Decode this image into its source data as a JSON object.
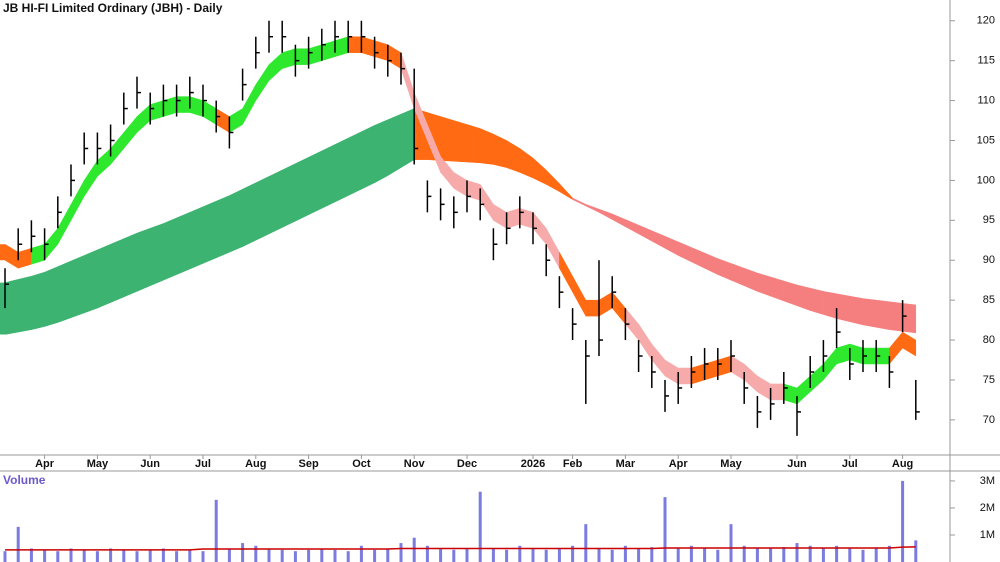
{
  "chart_data": [
    {
      "type": "ohlc",
      "title": "JB HI-FI Limited Ordinary (JBH) - Daily",
      "categories": [
        null,
        null,
        null,
        "Apr",
        null,
        null,
        null,
        "May",
        null,
        null,
        null,
        "Jun",
        null,
        null,
        null,
        "Jul",
        null,
        null,
        null,
        "Aug",
        null,
        null,
        null,
        "Sep",
        null,
        null,
        null,
        "Oct",
        null,
        null,
        null,
        "Nov",
        null,
        null,
        null,
        "Dec",
        null,
        null,
        null,
        null,
        "2026",
        null,
        null,
        "Feb",
        null,
        null,
        null,
        "Mar",
        null,
        null,
        null,
        "Apr",
        null,
        null,
        null,
        "May",
        null,
        null,
        null,
        null,
        "Jun",
        null,
        null,
        null,
        "Jul",
        null,
        null,
        null,
        "Aug",
        null
      ],
      "high": [
        89,
        94,
        95,
        94,
        98,
        102,
        106,
        106,
        107,
        111,
        113,
        111,
        112,
        112,
        113,
        112,
        110,
        108,
        114,
        118,
        120,
        120,
        117,
        118,
        119,
        120,
        120,
        120,
        118,
        117,
        116,
        114,
        100,
        99,
        98,
        100,
        99,
        94,
        96,
        98,
        96,
        92,
        88,
        84,
        80,
        90,
        88,
        84,
        80,
        78,
        75,
        76,
        78,
        79,
        79,
        80,
        76,
        73,
        74,
        76,
        73,
        78,
        80,
        84,
        79,
        80,
        80,
        78,
        85,
        75
      ],
      "low": [
        84,
        90,
        91,
        90,
        94,
        98,
        102,
        102,
        103,
        107,
        109,
        107,
        108,
        108,
        109,
        108,
        106,
        104,
        110,
        114,
        116,
        116,
        113,
        114,
        115,
        116,
        116,
        116,
        114,
        113,
        112,
        102,
        96,
        95,
        94,
        96,
        95,
        90,
        92,
        94,
        92,
        88,
        84,
        80,
        72,
        78,
        84,
        80,
        76,
        74,
        71,
        72,
        74,
        75,
        75,
        76,
        72,
        69,
        70,
        72,
        68,
        74,
        76,
        79,
        75,
        76,
        76,
        74,
        81,
        70
      ],
      "close": [
        87,
        92,
        93,
        92,
        96,
        100,
        104,
        104,
        105,
        109,
        111,
        109,
        110,
        110,
        111,
        110,
        108,
        106,
        112,
        116,
        118,
        118,
        115,
        116,
        117,
        118,
        118,
        118,
        116,
        115,
        114,
        104,
        98,
        97,
        96,
        98,
        97,
        92,
        94,
        96,
        94,
        90,
        86,
        82,
        78,
        80,
        86,
        82,
        78,
        76,
        73,
        74,
        76,
        77,
        77,
        78,
        74,
        71,
        72,
        74,
        71,
        76,
        78,
        81,
        77,
        78,
        78,
        76,
        83,
        71
      ],
      "color": "#000000",
      "bands": [
        {
          "upper": [
            87.2,
            87.6,
            88,
            88.5,
            89.2,
            89.9,
            90.6,
            91.3,
            92,
            92.7,
            93.4,
            94,
            94.6,
            95.3,
            96,
            96.7,
            97.4,
            98.1,
            98.9,
            99.7,
            100.5,
            101.3,
            102.1,
            102.9,
            103.7,
            104.5,
            105.3,
            106.1,
            106.9,
            107.6,
            108.3,
            109,
            108.5,
            108,
            107.5,
            107,
            106.5,
            105.8,
            105,
            104,
            102.8,
            101.3,
            99.6,
            97.8,
            97,
            96.4,
            95.8,
            95.1,
            94.4,
            93.7,
            93,
            92.3,
            91.6,
            90.9,
            90.2,
            89.6,
            89,
            88.4,
            87.9,
            87.4,
            86.9,
            86.5,
            86.1,
            85.8,
            85.5,
            85.2,
            85,
            84.8,
            84.6,
            84.4
          ],
          "lower": [
            80.7,
            81,
            81.3,
            81.7,
            82.2,
            82.8,
            83.4,
            84,
            84.7,
            85.4,
            86.1,
            86.8,
            87.5,
            88.2,
            88.9,
            89.6,
            90.3,
            91,
            91.7,
            92.5,
            93.3,
            94.1,
            94.9,
            95.7,
            96.5,
            97.3,
            98.1,
            98.9,
            99.7,
            100.6,
            101.6,
            102.6,
            102.6,
            102.5,
            102.4,
            102.3,
            102.2,
            102,
            101.6,
            101,
            100.3,
            99.5,
            98.6,
            97.6,
            96.8,
            96,
            95.1,
            94.2,
            93.3,
            92.4,
            91.5,
            90.6,
            89.8,
            89,
            88.2,
            87.5,
            86.8,
            86.1,
            85.5,
            84.9,
            84.3,
            83.7,
            83.2,
            82.7,
            82.3,
            81.9,
            81.6,
            81.3,
            81.1,
            80.9
          ],
          "colors": [
            "#3cb371",
            "#3cb371",
            "#3cb371",
            "#3cb371",
            "#3cb371",
            "#3cb371",
            "#3cb371",
            "#3cb371",
            "#3cb371",
            "#3cb371",
            "#3cb371",
            "#3cb371",
            "#3cb371",
            "#3cb371",
            "#3cb371",
            "#3cb371",
            "#3cb371",
            "#3cb371",
            "#3cb371",
            "#3cb371",
            "#3cb371",
            "#3cb371",
            "#3cb371",
            "#3cb371",
            "#3cb371",
            "#3cb371",
            "#3cb371",
            "#3cb371",
            "#3cb371",
            "#3cb371",
            "#3cb371",
            "#3cb371",
            "#ff6a13",
            "#ff6a13",
            "#ff6a13",
            "#ff6a13",
            "#ff6a13",
            "#ff6a13",
            "#ff6a13",
            "#ff6a13",
            "#ff6a13",
            "#ff6a13",
            "#ff6a13",
            "#ff6a13",
            "#f57f7f",
            "#f57f7f",
            "#f57f7f",
            "#f57f7f",
            "#f57f7f",
            "#f57f7f",
            "#f57f7f",
            "#f57f7f",
            "#f57f7f",
            "#f57f7f",
            "#f57f7f",
            "#f57f7f",
            "#f57f7f",
            "#f57f7f",
            "#f57f7f",
            "#f57f7f",
            "#f57f7f",
            "#f57f7f",
            "#f57f7f",
            "#f57f7f",
            "#f57f7f",
            "#f57f7f",
            "#f57f7f",
            "#f57f7f",
            "#f57f7f",
            "#f57f7f"
          ]
        },
        {
          "upper": [
            92,
            91,
            91.5,
            92,
            94,
            97,
            100,
            102.5,
            104,
            106,
            108,
            109.5,
            110,
            110.5,
            110.5,
            110,
            109,
            108,
            109,
            112,
            114.5,
            116,
            116.5,
            116.5,
            117,
            117.5,
            118,
            118,
            117.5,
            117,
            116,
            111,
            107,
            103,
            101,
            100,
            99.5,
            97,
            96,
            96.5,
            96,
            94,
            91,
            88,
            85,
            85,
            86,
            84,
            82,
            79.5,
            77.5,
            76.5,
            76.5,
            77,
            77.5,
            78,
            77,
            75.5,
            74.5,
            74.5,
            74,
            75.5,
            77,
            79,
            79.5,
            79,
            79,
            79,
            81,
            80
          ],
          "lower": [
            90,
            89,
            89.5,
            90,
            92,
            95,
            98,
            100.5,
            102,
            104,
            106,
            107.5,
            108,
            108.5,
            108.5,
            108,
            107,
            106,
            107,
            110,
            112.5,
            114,
            114.5,
            114.5,
            115,
            115.5,
            116,
            116,
            115.5,
            115,
            114,
            109,
            105,
            101,
            99,
            98,
            97.5,
            95,
            94,
            94.5,
            94,
            92,
            89,
            86,
            83,
            83,
            84,
            82,
            80,
            77.5,
            75.5,
            74.5,
            74.5,
            75,
            75.5,
            76,
            75,
            73.5,
            72.5,
            72.5,
            72,
            73.5,
            75,
            77,
            77.5,
            77,
            77,
            77,
            79,
            78
          ],
          "colors": [
            "#ff6a13",
            "#ff6a13",
            "#ff6a13",
            "#2ee82e",
            "#2ee82e",
            "#2ee82e",
            "#2ee82e",
            "#2ee82e",
            "#2ee82e",
            "#2ee82e",
            "#2ee82e",
            "#2ee82e",
            "#2ee82e",
            "#2ee82e",
            "#2ee82e",
            "#2ee82e",
            "#2ee82e",
            "#ff6a13",
            "#2ee82e",
            "#2ee82e",
            "#2ee82e",
            "#2ee82e",
            "#2ee82e",
            "#2ee82e",
            "#2ee82e",
            "#2ee82e",
            "#2ee82e",
            "#ff6a13",
            "#ff6a13",
            "#ff6a13",
            "#ff6a13",
            "#f7aaaa",
            "#f7aaaa",
            "#f7aaaa",
            "#f7aaaa",
            "#f7aaaa",
            "#f7aaaa",
            "#f7aaaa",
            "#f7aaaa",
            "#f7aaaa",
            "#f7aaaa",
            "#f7aaaa",
            "#f7aaaa",
            "#ff6a13",
            "#ff6a13",
            "#ff6a13",
            "#ff6a13",
            "#ff6a13",
            "#f7aaaa",
            "#f7aaaa",
            "#f7aaaa",
            "#f7aaaa",
            "#f7aaaa",
            "#ff6a13",
            "#ff6a13",
            "#ff6a13",
            "#f7aaaa",
            "#f7aaaa",
            "#f7aaaa",
            "#f7aaaa",
            "#2ee82e",
            "#2ee82e",
            "#2ee82e",
            "#2ee82e",
            "#2ee82e",
            "#2ee82e",
            "#2ee82e",
            "#2ee82e",
            "#ff6a13",
            "#ff6a13"
          ]
        }
      ],
      "ylim": [
        65.6,
        122.6
      ],
      "yticks": [
        70,
        75,
        80,
        85,
        90,
        95,
        100,
        105,
        110,
        115,
        120
      ]
    },
    {
      "type": "bar",
      "title": "Volume",
      "values": [
        400000,
        1300000,
        500000,
        450000,
        400000,
        500000,
        450000,
        400000,
        500000,
        450000,
        400000,
        450000,
        500000,
        400000,
        450000,
        400000,
        2300000,
        500000,
        700000,
        600000,
        500000,
        450000,
        400000,
        450000,
        500000,
        450000,
        400000,
        600000,
        450000,
        500000,
        700000,
        900000,
        600000,
        500000,
        450000,
        500000,
        2600000,
        500000,
        450000,
        600000,
        500000,
        450000,
        500000,
        600000,
        1400000,
        500000,
        450000,
        600000,
        500000,
        550000,
        2400000,
        500000,
        600000,
        500000,
        450000,
        1400000,
        600000,
        500000,
        500000,
        550000,
        700000,
        600000,
        500000,
        600000,
        500000,
        450000,
        500000,
        600000,
        3000000,
        800000
      ],
      "average": [
        450000,
        450000,
        450000,
        450000,
        450000,
        450000,
        450000,
        450000,
        450000,
        450000,
        450000,
        450000,
        450000,
        450000,
        450000,
        480000,
        480000,
        480000,
        480000,
        480000,
        480000,
        480000,
        480000,
        480000,
        480000,
        480000,
        480000,
        480000,
        480000,
        480000,
        500000,
        500000,
        500000,
        500000,
        500000,
        500000,
        500000,
        500000,
        500000,
        500000,
        500000,
        500000,
        500000,
        500000,
        500000,
        500000,
        500000,
        500000,
        500000,
        500000,
        520000,
        520000,
        520000,
        520000,
        520000,
        520000,
        520000,
        520000,
        520000,
        520000,
        520000,
        520000,
        520000,
        520000,
        520000,
        520000,
        520000,
        520000,
        550000,
        560000
      ],
      "color": "#7b7be0",
      "average_color": "#cc0000",
      "ylim": [
        0,
        3330000
      ],
      "yticks": [
        {
          "value": 1000000,
          "label": "1M"
        },
        {
          "value": 2000000,
          "label": "2M"
        },
        {
          "value": 3000000,
          "label": "3M"
        }
      ]
    }
  ]
}
